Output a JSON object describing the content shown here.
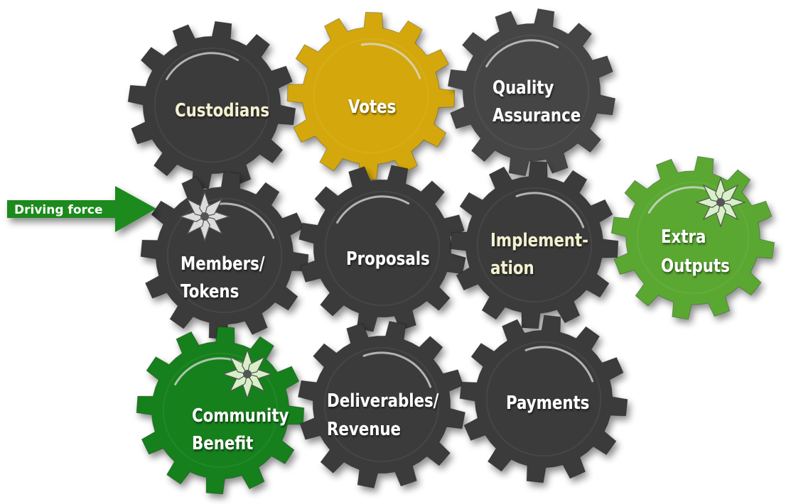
{
  "driving_force": {
    "label": "Driving force",
    "color": "#1f8a1f"
  },
  "gears": [
    {
      "id": "custodians",
      "lines": [
        "Custodians"
      ],
      "fill": "#3b3b3b",
      "text_color": "#f4f1d0",
      "badge": false
    },
    {
      "id": "votes",
      "lines": [
        "Votes"
      ],
      "fill": "#d4a80c",
      "text_color": "#ffffff",
      "badge": false
    },
    {
      "id": "quality-assurance",
      "lines": [
        "Quality",
        "Assurance"
      ],
      "fill": "#444444",
      "text_color": "#ffffff",
      "badge": false
    },
    {
      "id": "members-tokens",
      "lines": [
        "Members/",
        "Tokens"
      ],
      "fill": "#3a3a3a",
      "text_color": "#ffffff",
      "badge": true,
      "badge_color": "#dcdcdc"
    },
    {
      "id": "proposals",
      "lines": [
        "Proposals"
      ],
      "fill": "#3b3b3b",
      "text_color": "#ffffff",
      "badge": false
    },
    {
      "id": "implementation",
      "lines": [
        "Implement-",
        "ation"
      ],
      "fill": "#3b3b3b",
      "text_color": "#f4f1d0",
      "badge": false
    },
    {
      "id": "extra-outputs",
      "lines": [
        "Extra",
        "Outputs"
      ],
      "fill": "#5aa832",
      "text_color": "#ffffff",
      "badge": true,
      "badge_color": "#d8f0c8"
    },
    {
      "id": "community-benefit",
      "lines": [
        "Community",
        "Benefit"
      ],
      "fill": "#16801a",
      "text_color": "#ffffff",
      "badge": true,
      "badge_color": "#d8f0c8"
    },
    {
      "id": "deliverables-revenue",
      "lines": [
        "Deliverables/",
        "Revenue"
      ],
      "fill": "#3b3b3b",
      "text_color": "#ffffff",
      "badge": false
    },
    {
      "id": "payments",
      "lines": [
        "Payments"
      ],
      "fill": "#3b3b3b",
      "text_color": "#ffffff",
      "badge": false
    }
  ]
}
